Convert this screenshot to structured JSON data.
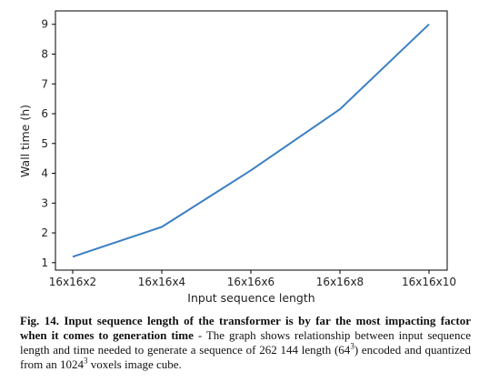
{
  "chart_data": {
    "type": "line",
    "categories": [
      "16x16x2",
      "16x16x4",
      "16x16x6",
      "16x16x8",
      "16x16x10"
    ],
    "series": [
      {
        "values": [
          1.2,
          2.2,
          4.1,
          6.15,
          9.0
        ],
        "color": "#3b7fc4"
      }
    ],
    "xlabel": "Input sequence length",
    "ylabel": "Wall time (h)",
    "yticks": [
      1,
      2,
      3,
      4,
      5,
      6,
      7,
      8,
      9
    ],
    "ylim": [
      0.75,
      9.45
    ],
    "grid": false
  },
  "caption": {
    "bold": "Fig. 14. Input sequence length of the transformer is by far the most impacting factor when it comes to generation time",
    "text_1": " - The graph shows relationship between input sequence length and time needed to generate a sequence of 262 144 length (64",
    "sup_1": "3",
    "text_2": ") encoded and quantized from an 1024",
    "sup_2": "3",
    "text_3": " voxels image cube."
  }
}
